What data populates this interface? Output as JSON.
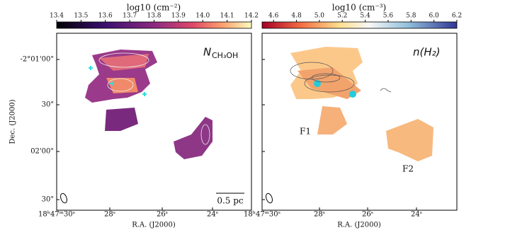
{
  "chart_data": [
    {
      "type": "image",
      "colorbar_label": "log10 (cm⁻²)",
      "clim": [
        13.4,
        14.2
      ],
      "cticks": [
        13.4,
        13.5,
        13.6,
        13.7,
        13.8,
        13.9,
        {
          "value": 14,
          "label": "14.0"
        },
        14.1,
        14.2
      ],
      "panel_label": "N",
      "panel_label_sub": "CH₃OH",
      "scale_bar": "0.5 pc",
      "xtick_labels": [
        "18ʰ47ᵐ30ˢ",
        "28ˢ",
        "26ˢ",
        "24ˢ"
      ],
      "ytick_labels": [
        "-2°01'00\"",
        "30\"",
        "02'00\"",
        "30\""
      ],
      "xlabel": "R.A. (J2000)",
      "ylabel": "Dec. (J2000)"
    },
    {
      "type": "image",
      "colorbar_label": "log10 (cm⁻³)",
      "clim": [
        4.5,
        6.2
      ],
      "cticks": [
        4.6,
        4.8,
        {
          "value": 5,
          "label": "5.0"
        },
        5.2,
        5.4,
        5.6,
        5.8,
        {
          "value": 6,
          "label": "6.0"
        },
        6.2
      ],
      "panel_label": "n(H₂)",
      "annotations": [
        "F1",
        "F2"
      ],
      "xtick_labels": [
        "18ʰ47ᵐ30ˢ",
        "28ˢ",
        "26ˢ",
        "24ˢ"
      ],
      "xlabel": "R.A. (J2000)"
    }
  ]
}
